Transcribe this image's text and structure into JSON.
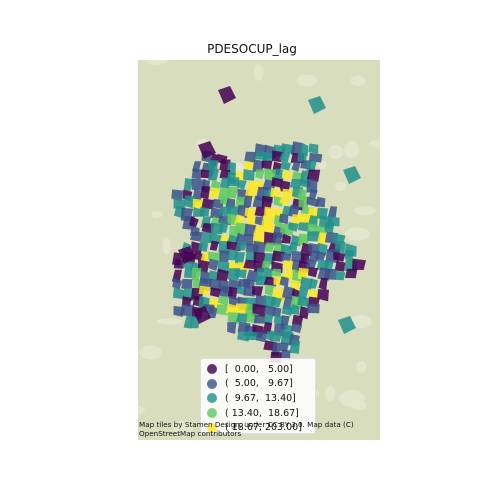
{
  "title": "PDESOCUP_lag",
  "legend": {
    "items": [
      {
        "label": "[  0.00,   5.00]",
        "color": "#440154"
      },
      {
        "label": "(  5.00,   9.67]",
        "color": "#3b528b"
      },
      {
        "label": "(  9.67,  13.40]",
        "color": "#21918c"
      },
      {
        "label": "( 13.40,  18.67]",
        "color": "#5ec962"
      },
      {
        "label": "( 18.67, 203.00]",
        "color": "#fde725"
      }
    ]
  },
  "attribution": {
    "line1": "Map tiles by Stamen Design, under CC BY 3.0. Map data (C)",
    "line2": "OpenStreetMap contributors"
  },
  "colors": {
    "basemap": "#d7ddbd",
    "basemap_light": "#e4e8d0"
  }
}
